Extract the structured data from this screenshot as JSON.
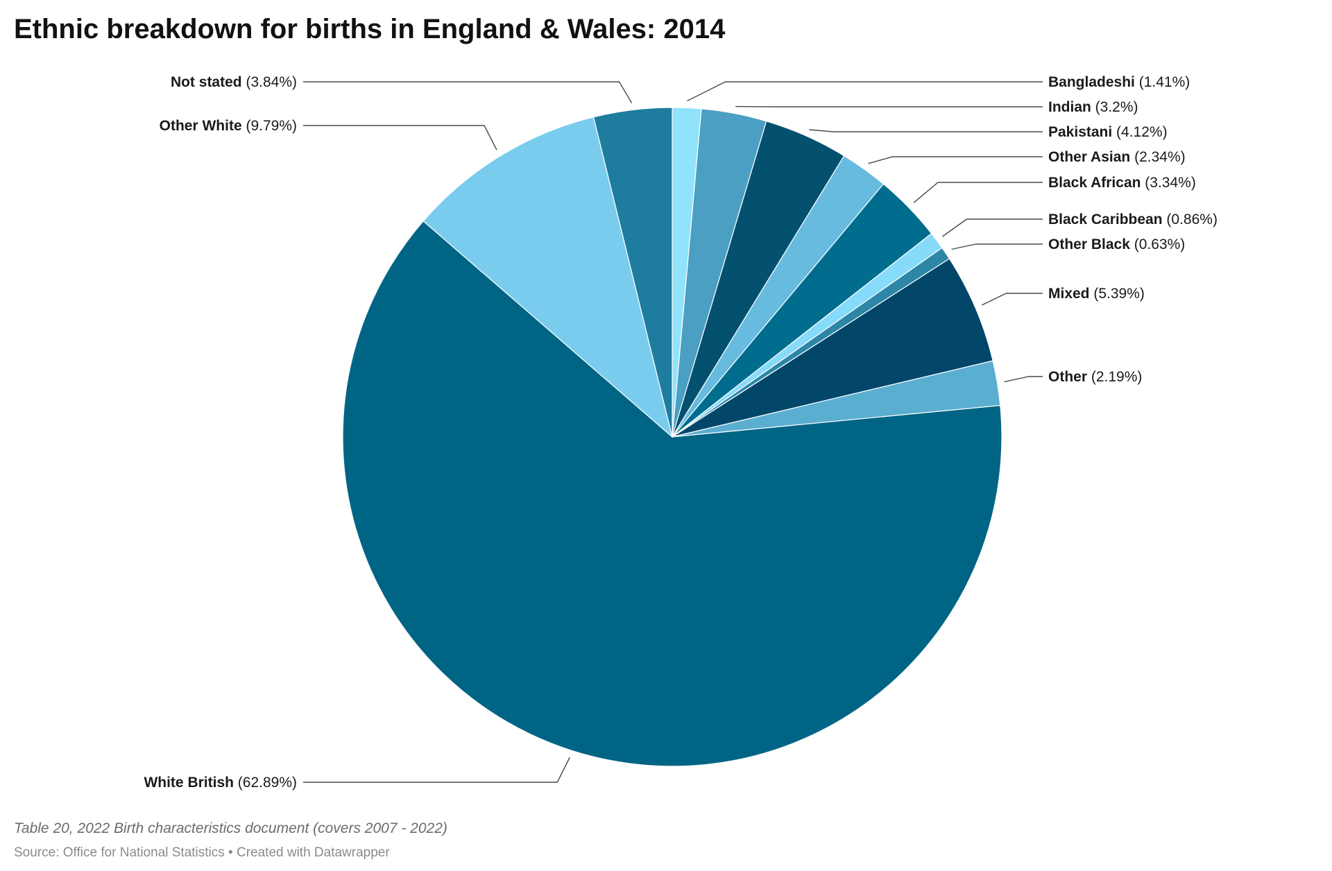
{
  "chart_data": {
    "type": "pie",
    "title": "Ethnic breakdown for births in England & Wales: 2014",
    "slices": [
      {
        "label": "Bangladeshi",
        "value": 1.41,
        "value_text": "(1.41%)",
        "color": "#91e3fb"
      },
      {
        "label": "Indian",
        "value": 3.2,
        "value_text": "(3.2%)",
        "color": "#4a9fc2"
      },
      {
        "label": "Pakistani",
        "value": 4.12,
        "value_text": "(4.12%)",
        "color": "#03506f"
      },
      {
        "label": "Other Asian",
        "value": 2.34,
        "value_text": "(2.34%)",
        "color": "#66bbde"
      },
      {
        "label": "Black African",
        "value": 3.34,
        "value_text": "(3.34%)",
        "color": "#006d8f"
      },
      {
        "label": "Black Caribbean",
        "value": 0.86,
        "value_text": "(0.86%)",
        "color": "#86dafa"
      },
      {
        "label": "Other Black",
        "value": 0.63,
        "value_text": "(0.63%)",
        "color": "#2d86a6"
      },
      {
        "label": "Mixed",
        "value": 5.39,
        "value_text": "(5.39%)",
        "color": "#02476a"
      },
      {
        "label": "Other",
        "value": 2.19,
        "value_text": "(2.19%)",
        "color": "#5aaed0"
      },
      {
        "label": "White British",
        "value": 62.89,
        "value_text": "(62.89%)",
        "color": "#006585"
      },
      {
        "label": "Other White",
        "value": 9.79,
        "value_text": "(9.79%)",
        "color": "#7accee"
      },
      {
        "label": "Not stated",
        "value": 3.84,
        "value_text": "(3.84%)",
        "color": "#1e7c9e"
      }
    ],
    "note": "Table 20, 2022 Birth characteristics document (covers 2007 - 2022)",
    "source": "Source: Office for National Statistics • Created with Datawrapper"
  }
}
